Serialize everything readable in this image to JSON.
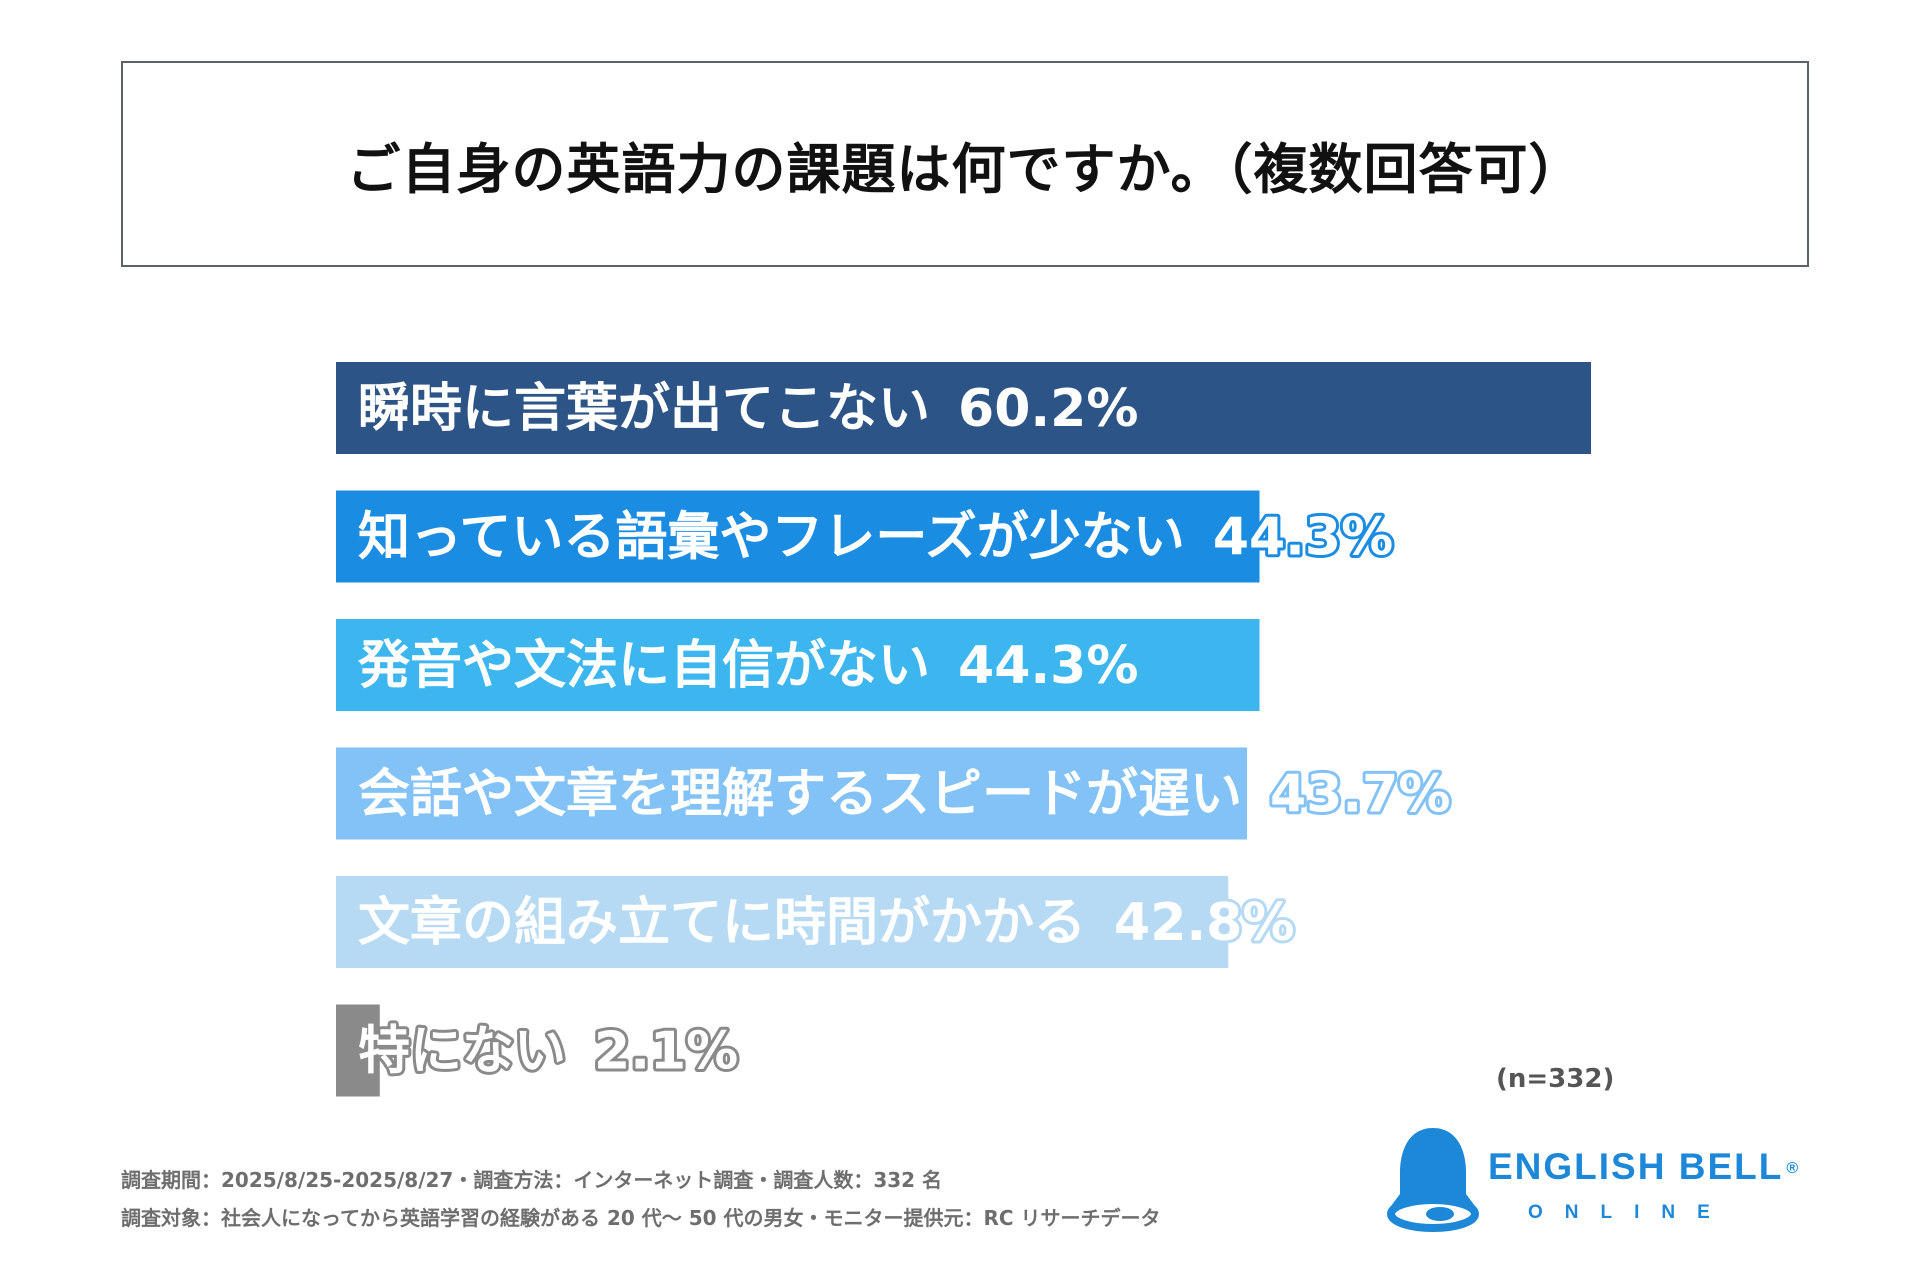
{
  "chart_data": {
    "type": "bar",
    "orientation": "horizontal",
    "title": "ご自身の英語力の課題は何ですか。（複数回答可）",
    "categories": [
      "瞬時に言葉が出てこない",
      "知っている語彙やフレーズが少ない",
      "発音や文法に自信がない",
      "会話や文章を理解するスピードが遅い",
      "文章の組み立てに時間がかかる",
      "特にない"
    ],
    "values": [
      60.2,
      44.3,
      44.3,
      43.7,
      42.8,
      2.1
    ],
    "value_labels": [
      "60.2%",
      "44.3%",
      "44.3%",
      "43.7%",
      "42.8%",
      "2.1%"
    ],
    "colors": [
      "#2d5486",
      "#1a8ce2",
      "#3db6ef",
      "#82c2f6",
      "#b6daf3",
      "#8a8a8a"
    ],
    "xlim": [
      0,
      60.2
    ],
    "grid": false,
    "legend": "none",
    "note": "(n=332)"
  },
  "footer": {
    "line1": "調査期間：2025/8/25-2025/8/27・調査方法：インターネット調査・調査人数：332 名",
    "line2": "調査対象：社会人になってから英語学習の経験がある 20 代〜 50 代の男女・モニター提供元：RC リサーチデータ"
  },
  "logo": {
    "name": "ENGLISH BELL",
    "mark": "®",
    "sub": "ONLINE",
    "icon": "bell-icon",
    "color": "#1d87d8"
  }
}
